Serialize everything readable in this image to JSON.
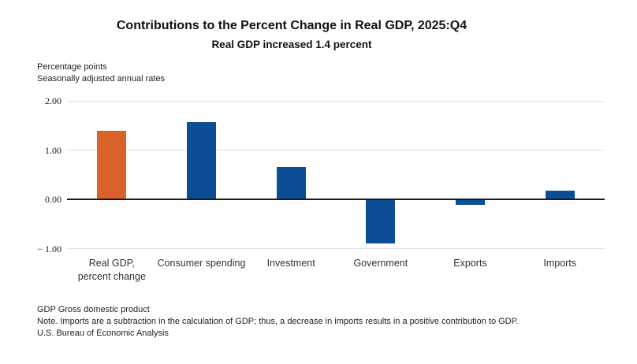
{
  "title": "Contributions to the Percent Change in Real GDP, 2025:Q4",
  "subtitle": "Real GDP increased 1.4 percent",
  "axis_notes": [
    "Percentage points",
    "Seasonally adjusted annual rates"
  ],
  "footer": [
    "GDP Gross domestic product",
    "Note. Imports are a subtraction in the calculation of GDP; thus, a decrease in imports results in a positive contribution to GDP.",
    "U.S. Bureau of Economic Analysis"
  ],
  "colors": {
    "bar_default": "#0B4E95",
    "bar_highlight": "#D9622B",
    "zero_line": "#1A1A1A",
    "gridline": "#E3E3E3",
    "text": "#222222"
  },
  "chart_data": {
    "type": "bar",
    "categories": [
      "Real GDP,\npercent change",
      "Consumer spending",
      "Investment",
      "Government",
      "Exports",
      "Imports"
    ],
    "values": [
      1.4,
      1.57,
      0.65,
      -0.89,
      -0.11,
      0.18
    ],
    "bar_colors": [
      "#D9622B",
      "#0B4E95",
      "#0B4E95",
      "#0B4E95",
      "#0B4E95",
      "#0B4E95"
    ],
    "title": "Contributions to the Percent Change in Real GDP, 2025:Q4",
    "subtitle": "Real GDP increased 1.4 percent",
    "xlabel": "",
    "ylabel": "Percentage points, seasonally adjusted annual rates",
    "yticks": [
      2,
      1,
      0,
      -1
    ],
    "ytick_labels": [
      "2.00",
      "1.00",
      "0.00",
      "− 1.00"
    ],
    "ylim": [
      -1.4,
      2.0
    ],
    "grid": true,
    "legend": false,
    "highlighted_category": "Real GDP, percent change"
  }
}
